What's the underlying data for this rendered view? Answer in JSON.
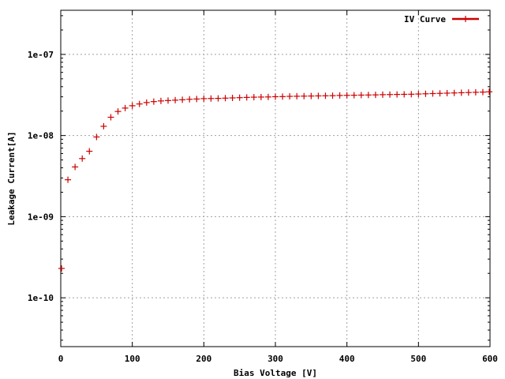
{
  "chart_data": {
    "type": "scatter",
    "xlabel": "Bias Voltage [V]",
    "ylabel": "Leakage Current[A]",
    "xlim": [
      0,
      600
    ],
    "ylim": [
      2.5e-11,
      3.5e-07
    ],
    "y_scale": "log",
    "grid": true,
    "legend_position": "top-right",
    "x_ticks": [
      {
        "value": 0,
        "label": "0"
      },
      {
        "value": 100,
        "label": "100"
      },
      {
        "value": 200,
        "label": "200"
      },
      {
        "value": 300,
        "label": "300"
      },
      {
        "value": 400,
        "label": "400"
      },
      {
        "value": 500,
        "label": "500"
      },
      {
        "value": 600,
        "label": "600"
      }
    ],
    "y_ticks": [
      {
        "value": 1e-10,
        "label": "1e-10"
      },
      {
        "value": 1e-09,
        "label": "1e-09"
      },
      {
        "value": 1e-08,
        "label": "1e-08"
      },
      {
        "value": 1e-07,
        "label": "1e-07"
      }
    ],
    "series": [
      {
        "name": "IV Curve",
        "color": "#cc0000",
        "marker": "plus",
        "x": [
          0,
          10,
          20,
          30,
          40,
          50,
          60,
          70,
          80,
          90,
          100,
          110,
          120,
          130,
          140,
          150,
          160,
          170,
          180,
          190,
          200,
          210,
          220,
          230,
          240,
          250,
          260,
          270,
          280,
          290,
          300,
          310,
          320,
          330,
          340,
          350,
          360,
          370,
          380,
          390,
          400,
          410,
          420,
          430,
          440,
          450,
          460,
          470,
          480,
          490,
          500,
          510,
          520,
          530,
          540,
          550,
          560,
          570,
          580,
          590,
          600
        ],
        "y": [
          2.3e-10,
          2.85e-09,
          4.1e-09,
          5.2e-09,
          6.4e-09,
          9.6e-09,
          1.3e-08,
          1.68e-08,
          1.98e-08,
          2.18e-08,
          2.33e-08,
          2.45e-08,
          2.55e-08,
          2.62e-08,
          2.67e-08,
          2.7e-08,
          2.73e-08,
          2.76e-08,
          2.8e-08,
          2.82e-08,
          2.85e-08,
          2.86e-08,
          2.87e-08,
          2.89e-08,
          2.91e-08,
          2.93e-08,
          2.95e-08,
          2.97e-08,
          2.98e-08,
          2.99e-08,
          3.01e-08,
          3.02e-08,
          3.04e-08,
          3.05e-08,
          3.06e-08,
          3.07e-08,
          3.08e-08,
          3.09e-08,
          3.1e-08,
          3.12e-08,
          3.13e-08,
          3.14e-08,
          3.15e-08,
          3.16e-08,
          3.17e-08,
          3.19e-08,
          3.2e-08,
          3.21e-08,
          3.22e-08,
          3.23e-08,
          3.25e-08,
          3.27e-08,
          3.29e-08,
          3.31e-08,
          3.33e-08,
          3.35e-08,
          3.37e-08,
          3.39e-08,
          3.41e-08,
          3.43e-08,
          3.46e-08
        ]
      }
    ]
  }
}
